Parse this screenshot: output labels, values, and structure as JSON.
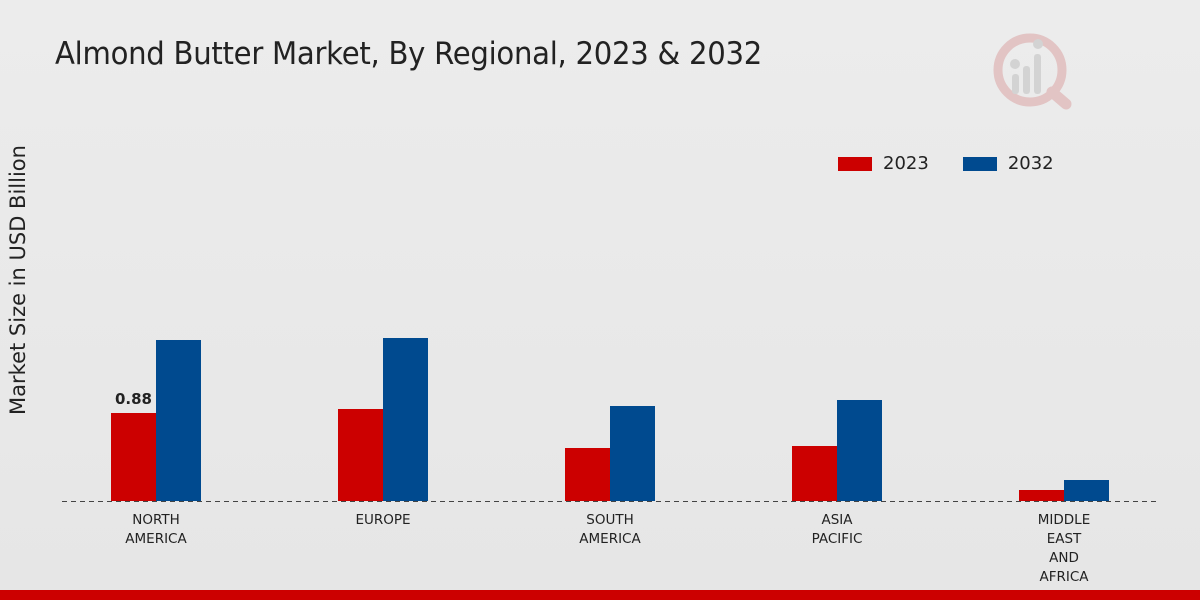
{
  "chart_data": {
    "type": "bar",
    "title": "Almond Butter Market, By Regional, 2023 & 2032",
    "ylabel": "Market Size in USD Billion",
    "xlabel": "",
    "categories": [
      [
        "NORTH",
        "AMERICA"
      ],
      [
        "EUROPE"
      ],
      [
        "SOUTH",
        "AMERICA"
      ],
      [
        "ASIA",
        "PACIFIC"
      ],
      [
        "MIDDLE",
        "EAST",
        "AND",
        "AFRICA"
      ]
    ],
    "series": [
      {
        "name": "2023",
        "color": "#cc0000",
        "values": [
          0.88,
          0.92,
          0.53,
          0.55,
          0.11
        ]
      },
      {
        "name": "2032",
        "color": "#004a8f",
        "values": [
          1.61,
          1.63,
          0.95,
          1.01,
          0.21
        ]
      }
    ],
    "data_labels": [
      {
        "series": 0,
        "index": 0,
        "text": "0.88"
      }
    ],
    "ylim": [
      0,
      4.6
    ],
    "grid": false,
    "legend_position": "top-right"
  }
}
